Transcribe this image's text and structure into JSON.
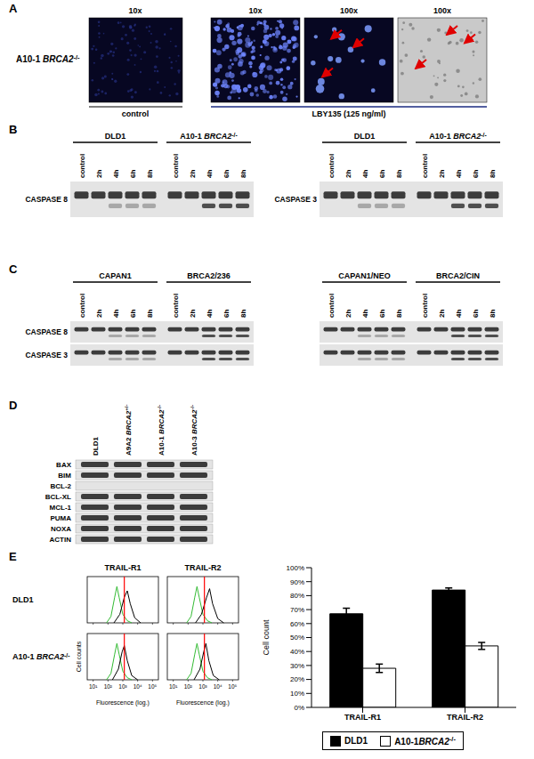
{
  "figure": {
    "A": {
      "label": "A",
      "row_label": "A10-1 BRCA2-/-",
      "control": {
        "magnification": "10x",
        "caption": "control"
      },
      "treated": {
        "magnifications": [
          "10x",
          "100x",
          "100x"
        ],
        "caption": "LBY135 (125 ng/ml)"
      }
    },
    "B": {
      "label": "B",
      "lanes": [
        "control",
        "2h",
        "4h",
        "6h",
        "8h"
      ],
      "blots": [
        {
          "groups": [
            "DLD1",
            "A10-1 BRCA2-/-"
          ],
          "rows": [
            "CASPASE 8"
          ]
        },
        {
          "groups": [
            "DLD1",
            "A10-1 BRCA2-/-"
          ],
          "rows": [
            "CASPASE 3"
          ]
        }
      ]
    },
    "C": {
      "label": "C",
      "lanes": [
        "control",
        "2h",
        "4h",
        "6h",
        "8h"
      ],
      "rows": [
        "CASPASE 8",
        "CASPASE 3"
      ],
      "blots": [
        {
          "groups": [
            "CAPAN1",
            "BRCA2/236"
          ]
        },
        {
          "groups": [
            "CAPAN1/NEO",
            "BRCA2/CIN"
          ]
        }
      ]
    },
    "D": {
      "label": "D",
      "lanes": [
        "DLD1",
        "A9A2 BRCA2+/-",
        "A10-1 BRCA2-/-",
        "A10-3 BRCA2-/-"
      ],
      "rows": [
        "BAX",
        "BIM",
        "BCL-2",
        "BCL-XL",
        "MCL-1",
        "PUMA",
        "NOXA",
        "ACTIN"
      ],
      "bands_visible": [
        true,
        true,
        false,
        true,
        true,
        true,
        true,
        true
      ]
    },
    "E": {
      "label": "E",
      "columns": [
        "TRAIL-R1",
        "TRAIL-R2"
      ],
      "rows": [
        "DLD1",
        "A10-1 BRCA2-/-"
      ],
      "y_label": "Cell counts",
      "x_label": "Fluorescence (log.)",
      "xlim": [
        0.6,
        5.4
      ],
      "xticks": [
        {
          "value": 1,
          "label": "10¹"
        },
        {
          "value": 2,
          "label": "10²"
        },
        {
          "value": 3,
          "label": "10³"
        },
        {
          "value": 4,
          "label": "10⁴"
        },
        {
          "value": 5,
          "label": "10⁵"
        }
      ],
      "isotype_color": "#33bb33",
      "antibody_color": "#000000",
      "threshold_color": "#ff0000",
      "panels": [
        [
          {
            "isotype": [
              [
                1.9,
                0
              ],
              [
                2.2,
                0.15
              ],
              [
                2.45,
                0.6
              ],
              [
                2.6,
                0.85
              ],
              [
                2.75,
                0.6
              ],
              [
                3.0,
                0.2
              ],
              [
                3.3,
                0.05
              ],
              [
                3.6,
                0
              ]
            ],
            "antibody": [
              [
                2.4,
                0
              ],
              [
                2.8,
                0.2
              ],
              [
                3.1,
                0.6
              ],
              [
                3.3,
                0.75
              ],
              [
                3.5,
                0.45
              ],
              [
                3.8,
                0.12
              ],
              [
                4.2,
                0
              ]
            ],
            "threshold": 3.1
          },
          {
            "isotype": [
              [
                1.9,
                0
              ],
              [
                2.2,
                0.15
              ],
              [
                2.45,
                0.6
              ],
              [
                2.6,
                0.85
              ],
              [
                2.75,
                0.6
              ],
              [
                3.0,
                0.2
              ],
              [
                3.3,
                0.05
              ],
              [
                3.6,
                0
              ]
            ],
            "antibody": [
              [
                2.5,
                0
              ],
              [
                2.9,
                0.2
              ],
              [
                3.25,
                0.6
              ],
              [
                3.45,
                0.8
              ],
              [
                3.65,
                0.45
              ],
              [
                4.0,
                0.1
              ],
              [
                4.4,
                0
              ]
            ],
            "threshold": 3.1
          }
        ],
        [
          {
            "isotype": [
              [
                1.9,
                0
              ],
              [
                2.2,
                0.15
              ],
              [
                2.45,
                0.6
              ],
              [
                2.6,
                0.85
              ],
              [
                2.75,
                0.6
              ],
              [
                3.0,
                0.2
              ],
              [
                3.3,
                0.05
              ],
              [
                3.6,
                0
              ]
            ],
            "antibody": [
              [
                2.3,
                0
              ],
              [
                2.7,
                0.25
              ],
              [
                2.95,
                0.65
              ],
              [
                3.1,
                0.8
              ],
              [
                3.3,
                0.45
              ],
              [
                3.6,
                0.1
              ],
              [
                4.0,
                0
              ]
            ],
            "threshold": 3.1
          },
          {
            "isotype": [
              [
                1.9,
                0
              ],
              [
                2.2,
                0.15
              ],
              [
                2.45,
                0.6
              ],
              [
                2.6,
                0.85
              ],
              [
                2.75,
                0.6
              ],
              [
                3.0,
                0.2
              ],
              [
                3.3,
                0.05
              ],
              [
                3.6,
                0
              ]
            ],
            "antibody": [
              [
                2.4,
                0
              ],
              [
                2.8,
                0.25
              ],
              [
                3.05,
                0.65
              ],
              [
                3.2,
                0.85
              ],
              [
                3.4,
                0.45
              ],
              [
                3.7,
                0.1
              ],
              [
                4.1,
                0
              ]
            ],
            "threshold": 3.1
          }
        ]
      ]
    }
  },
  "chart_data": {
    "type": "bar",
    "categories": [
      "TRAIL-R1",
      "TRAIL-R2"
    ],
    "series": [
      {
        "name": "DLD1",
        "color": "#000000",
        "values": [
          67,
          84
        ],
        "errors": [
          4,
          1.5
        ]
      },
      {
        "name": "A10-1BRCA2-/-",
        "color": "#ffffff",
        "values": [
          28,
          44
        ],
        "errors": [
          3,
          2.5
        ]
      }
    ],
    "ylim": [
      0,
      100
    ],
    "yticks": [
      {
        "value": 0,
        "label": "0%"
      },
      {
        "value": 10,
        "label": "10%"
      },
      {
        "value": 20,
        "label": "20%"
      },
      {
        "value": 30,
        "label": "30%"
      },
      {
        "value": 40,
        "label": "40%"
      },
      {
        "value": 50,
        "label": "50%"
      },
      {
        "value": 60,
        "label": "60%"
      },
      {
        "value": 70,
        "label": "70%"
      },
      {
        "value": 80,
        "label": "80%"
      },
      {
        "value": 90,
        "label": "90%"
      },
      {
        "value": 100,
        "label": "100%"
      }
    ],
    "y_label": "Cell count",
    "legend": "bottom"
  }
}
